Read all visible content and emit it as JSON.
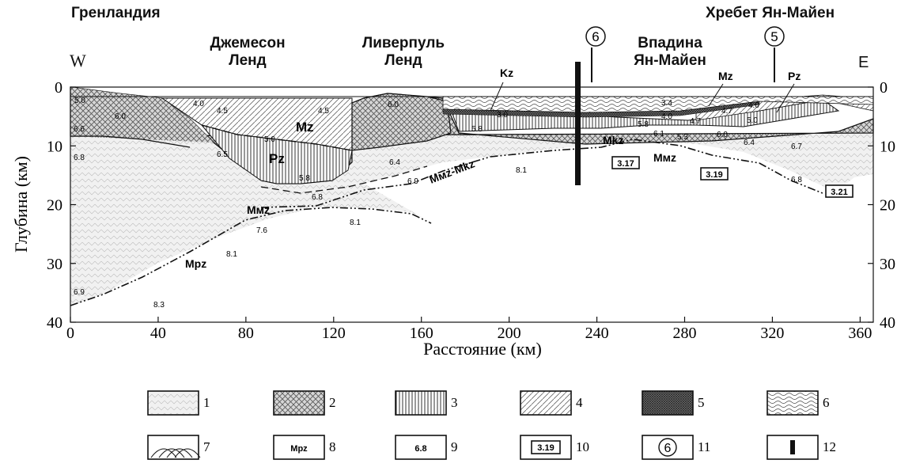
{
  "regions": {
    "greenland": "Гренландия",
    "jan_mayen_ridge": "Хребет Ян-Майен",
    "jameson_land": [
      "Джемесон",
      "Ленд"
    ],
    "liverpool_land": [
      "Ливерпуль",
      "Ленд"
    ],
    "jan_mayen_basin": [
      "Впадина",
      "Ян-Майен"
    ]
  },
  "directions": {
    "west": "W",
    "east": "E"
  },
  "axes": {
    "ylabel": "Глубина (км)",
    "xlabel": "Расстояние (км)",
    "x_ticks": [
      "0",
      "40",
      "80",
      "120",
      "160",
      "200",
      "240",
      "280",
      "320",
      "360"
    ],
    "x_values": [
      0,
      40,
      80,
      120,
      160,
      200,
      240,
      280,
      320,
      360
    ],
    "x_range": [
      0,
      366
    ],
    "left_y_ticks": [
      "0",
      "10",
      "20",
      "30",
      "40"
    ],
    "right_y_ticks": [
      "0",
      "10",
      "20",
      "30",
      "40"
    ],
    "y_values": [
      0,
      10,
      20,
      30,
      40
    ],
    "y_range": [
      0,
      40
    ]
  },
  "profile_marks": [
    {
      "label": "6",
      "x_km": 242
    },
    {
      "label": "5",
      "x_km": 325
    }
  ],
  "unit_labels": {
    "kz": "Kz",
    "mz_top": "Mz",
    "pz_top": "Pz",
    "mz": "Mz",
    "pz": "Pz",
    "mkz": "Mkz",
    "mmz_mkz": "Mмz-Mkz",
    "mmz_east": "Mмz",
    "mmz_west": "Mмz",
    "mpz": "Mpz"
  },
  "velocities": {
    "v1": "5.0",
    "v2": "6.0",
    "v3": "6.6",
    "v4": "6.8",
    "v5": "4.0",
    "v6": "4.5",
    "v7": "4.5",
    "v8": "5.0",
    "v9": "6.5",
    "v10": "5.8",
    "v11": "6.0",
    "v12": "6.4",
    "v13": "6.9",
    "v14": "6.8",
    "v15": "7.6",
    "v16": "8.1",
    "v17": "8.1",
    "v18": "8.1",
    "v19": "6.9",
    "v20": "8.3",
    "v21": "5.8",
    "v22": "3.0",
    "v23": "3.4",
    "v24": "4.0",
    "v25": "4.7",
    "v26": "4.7",
    "v27": "4.0",
    "v28": "5.0",
    "v29": "5.8",
    "v30": "6.1",
    "v31": "5.3",
    "v32": "6.0",
    "v33": "6.4",
    "v34": "6.7",
    "v35": "6.8"
  },
  "boxed_values": {
    "b1": "3.17",
    "b2": "3.19",
    "b3": "3.21"
  },
  "legend": {
    "items": [
      {
        "num": "1",
        "sample": ""
      },
      {
        "num": "2",
        "sample": ""
      },
      {
        "num": "3",
        "sample": ""
      },
      {
        "num": "4",
        "sample": ""
      },
      {
        "num": "5",
        "sample": ""
      },
      {
        "num": "6",
        "sample": ""
      },
      {
        "num": "7",
        "sample": ""
      },
      {
        "num": "8",
        "sample": "Mpz"
      },
      {
        "num": "9",
        "sample": "6.8"
      },
      {
        "num": "10",
        "sample": "3.19"
      },
      {
        "num": "11",
        "sample": "6"
      },
      {
        "num": "12",
        "sample": ""
      }
    ]
  },
  "colors": {
    "ink": "#111111",
    "paper": "#ffffff",
    "fill_light": "#ebebeb"
  }
}
